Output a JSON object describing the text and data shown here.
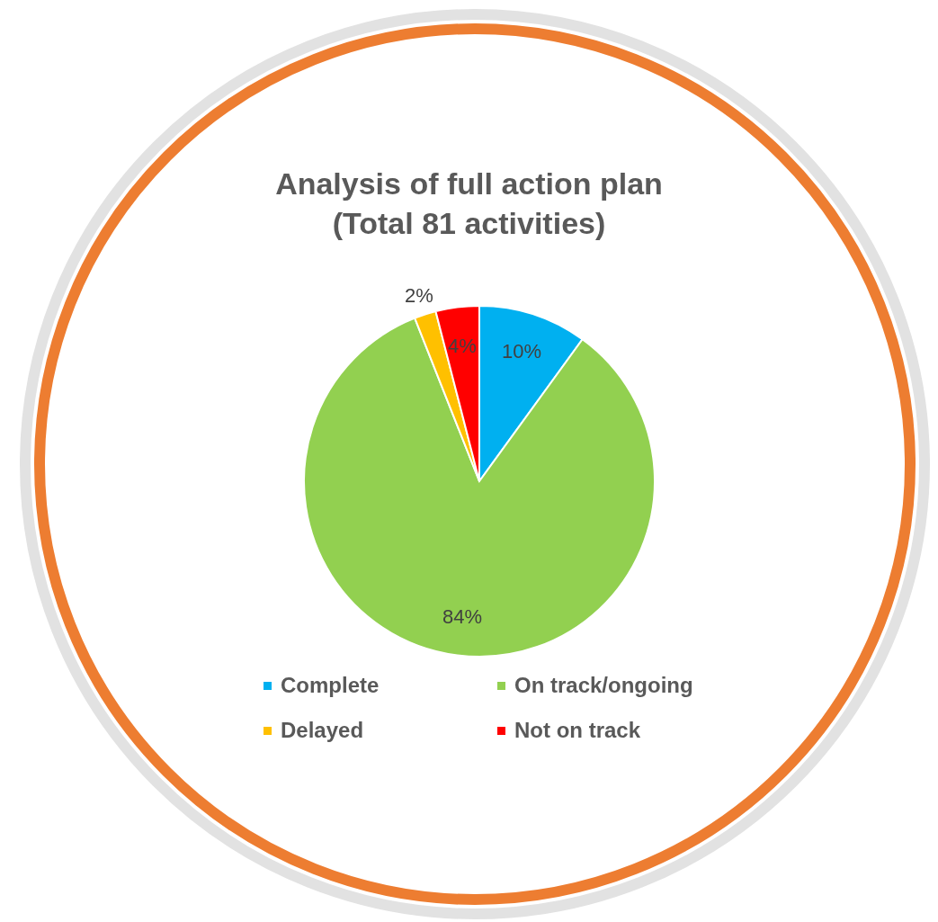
{
  "chart_data": {
    "type": "pie",
    "title": "Analysis of full action plan",
    "subtitle": "(Total 81 activities)",
    "categories": [
      "Complete",
      "On track/ongoing",
      "Delayed",
      "Not on track"
    ],
    "values": [
      10,
      84,
      2,
      4
    ],
    "colors": [
      "#00b0f0",
      "#92d050",
      "#ffc000",
      "#ff0000"
    ],
    "value_labels": [
      "10%",
      "84%",
      "2%",
      "4%"
    ],
    "legend": "bottom"
  }
}
